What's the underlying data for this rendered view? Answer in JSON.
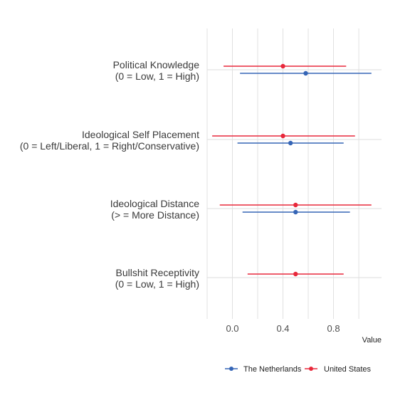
{
  "chart_data": {
    "type": "forest",
    "orientation": "horizontal",
    "title": "",
    "xlabel": "Value",
    "ylabel": "",
    "xlim": [
      -0.2,
      1.18
    ],
    "x_ticks": [
      0.0,
      0.4,
      0.8
    ],
    "x_tick_labels": [
      "0.0",
      "0.4",
      "0.8"
    ],
    "grid": true,
    "legend_position": "bottom",
    "categories": [
      {
        "line1": "Political Knowledge",
        "line2": "(0 = Low, 1 = High)"
      },
      {
        "line1": "Ideological Self Placement",
        "line2": "(0 = Left/Liberal, 1 = Right/Conservative)"
      },
      {
        "line1": "Ideological Distance",
        "line2": "(> = More Distance)"
      },
      {
        "line1": "Bullshit Receptivity",
        "line2": "(0 = Low, 1 = High)"
      }
    ],
    "series": [
      {
        "name": "The Netherlands",
        "color": "#3565b6",
        "points": [
          {
            "estimate": 0.58,
            "lower": 0.06,
            "upper": 1.1
          },
          {
            "estimate": 0.46,
            "lower": 0.04,
            "upper": 0.88
          },
          {
            "estimate": 0.5,
            "lower": 0.08,
            "upper": 0.93
          },
          null
        ]
      },
      {
        "name": "United States",
        "color": "#e8283b",
        "points": [
          {
            "estimate": 0.4,
            "lower": -0.07,
            "upper": 0.9
          },
          {
            "estimate": 0.4,
            "lower": -0.16,
            "upper": 0.97
          },
          {
            "estimate": 0.5,
            "lower": -0.1,
            "upper": 1.1
          },
          {
            "estimate": 0.5,
            "lower": 0.12,
            "upper": 0.88
          }
        ]
      }
    ]
  }
}
